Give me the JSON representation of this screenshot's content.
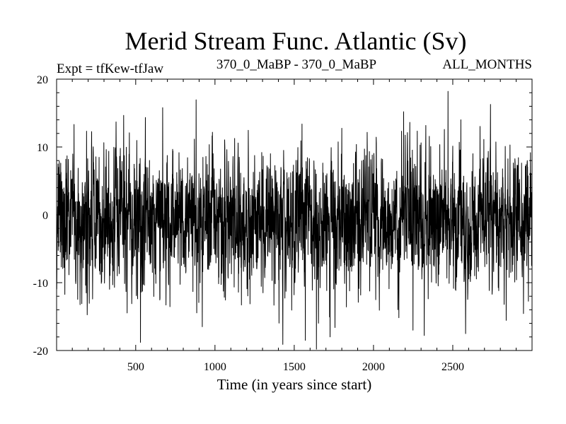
{
  "chart_data": {
    "type": "line",
    "title": "Merid Stream Func. Atlantic (Sv)",
    "left_subtitle": "Expt = tfKew-tfJaw",
    "center_subtitle": "370_0_MaBP - 370_0_MaBP",
    "right_subtitle": "ALL_MONTHS",
    "xlabel": "Time (in years since start)",
    "ylabel": "",
    "xlim": [
      1,
      3000
    ],
    "ylim": [
      -20,
      20
    ],
    "x_ticks": [
      500,
      1000,
      1500,
      2000,
      2500
    ],
    "x_tick_labels": [
      "500",
      "1000",
      "1500",
      "2000",
      "2500"
    ],
    "y_ticks": [
      -20,
      -10,
      0,
      10,
      20
    ],
    "y_tick_labels": [
      "-20",
      "-10",
      "0",
      "10",
      "20"
    ],
    "grid": false,
    "legend": "none",
    "line_color": "#000000",
    "series_summary": {
      "x_start": 1,
      "x_end": 3000,
      "x_step": 1,
      "mean": -1.0,
      "std_dev": 5.0,
      "max_value": 18.2,
      "max_at_x": 2470,
      "min_value": -19.8,
      "min_at_x": 1640
    },
    "notable_points": [
      {
        "x": 2470,
        "y": 18.2
      },
      {
        "x": 1640,
        "y": -19.8
      },
      {
        "x": 530,
        "y": -18.8
      },
      {
        "x": 1570,
        "y": -18.5
      },
      {
        "x": 670,
        "y": 15.8
      },
      {
        "x": 920,
        "y": -16.5
      },
      {
        "x": 2190,
        "y": 15.2
      }
    ]
  }
}
